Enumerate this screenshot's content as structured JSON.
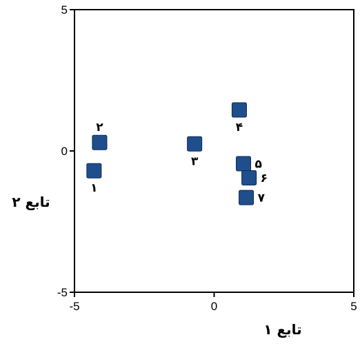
{
  "chart_data": {
    "type": "scatter",
    "title": "",
    "xlabel": "تابع ۱",
    "ylabel": "تابع ۲",
    "xlim": [
      -5,
      5
    ],
    "ylim": [
      -5,
      5
    ],
    "x_ticks": [
      "-5",
      "0",
      "5"
    ],
    "y_ticks": [
      "5",
      "0",
      "-5"
    ],
    "grid": false,
    "marker_color": "#1f4e8c",
    "points": [
      {
        "label": "۱",
        "x": -4.3,
        "y": -0.7,
        "label_pos": "below"
      },
      {
        "label": "۲",
        "x": -4.1,
        "y": 0.3,
        "label_pos": "above"
      },
      {
        "label": "۳",
        "x": -0.7,
        "y": 0.25,
        "label_pos": "below"
      },
      {
        "label": "۴",
        "x": 0.9,
        "y": 1.45,
        "label_pos": "below"
      },
      {
        "label": "۵",
        "x": 1.05,
        "y": -0.45,
        "label_pos": "right"
      },
      {
        "label": "۶",
        "x": 1.25,
        "y": -0.95,
        "label_pos": "right"
      },
      {
        "label": "۷",
        "x": 1.15,
        "y": -1.65,
        "label_pos": "right"
      }
    ]
  }
}
